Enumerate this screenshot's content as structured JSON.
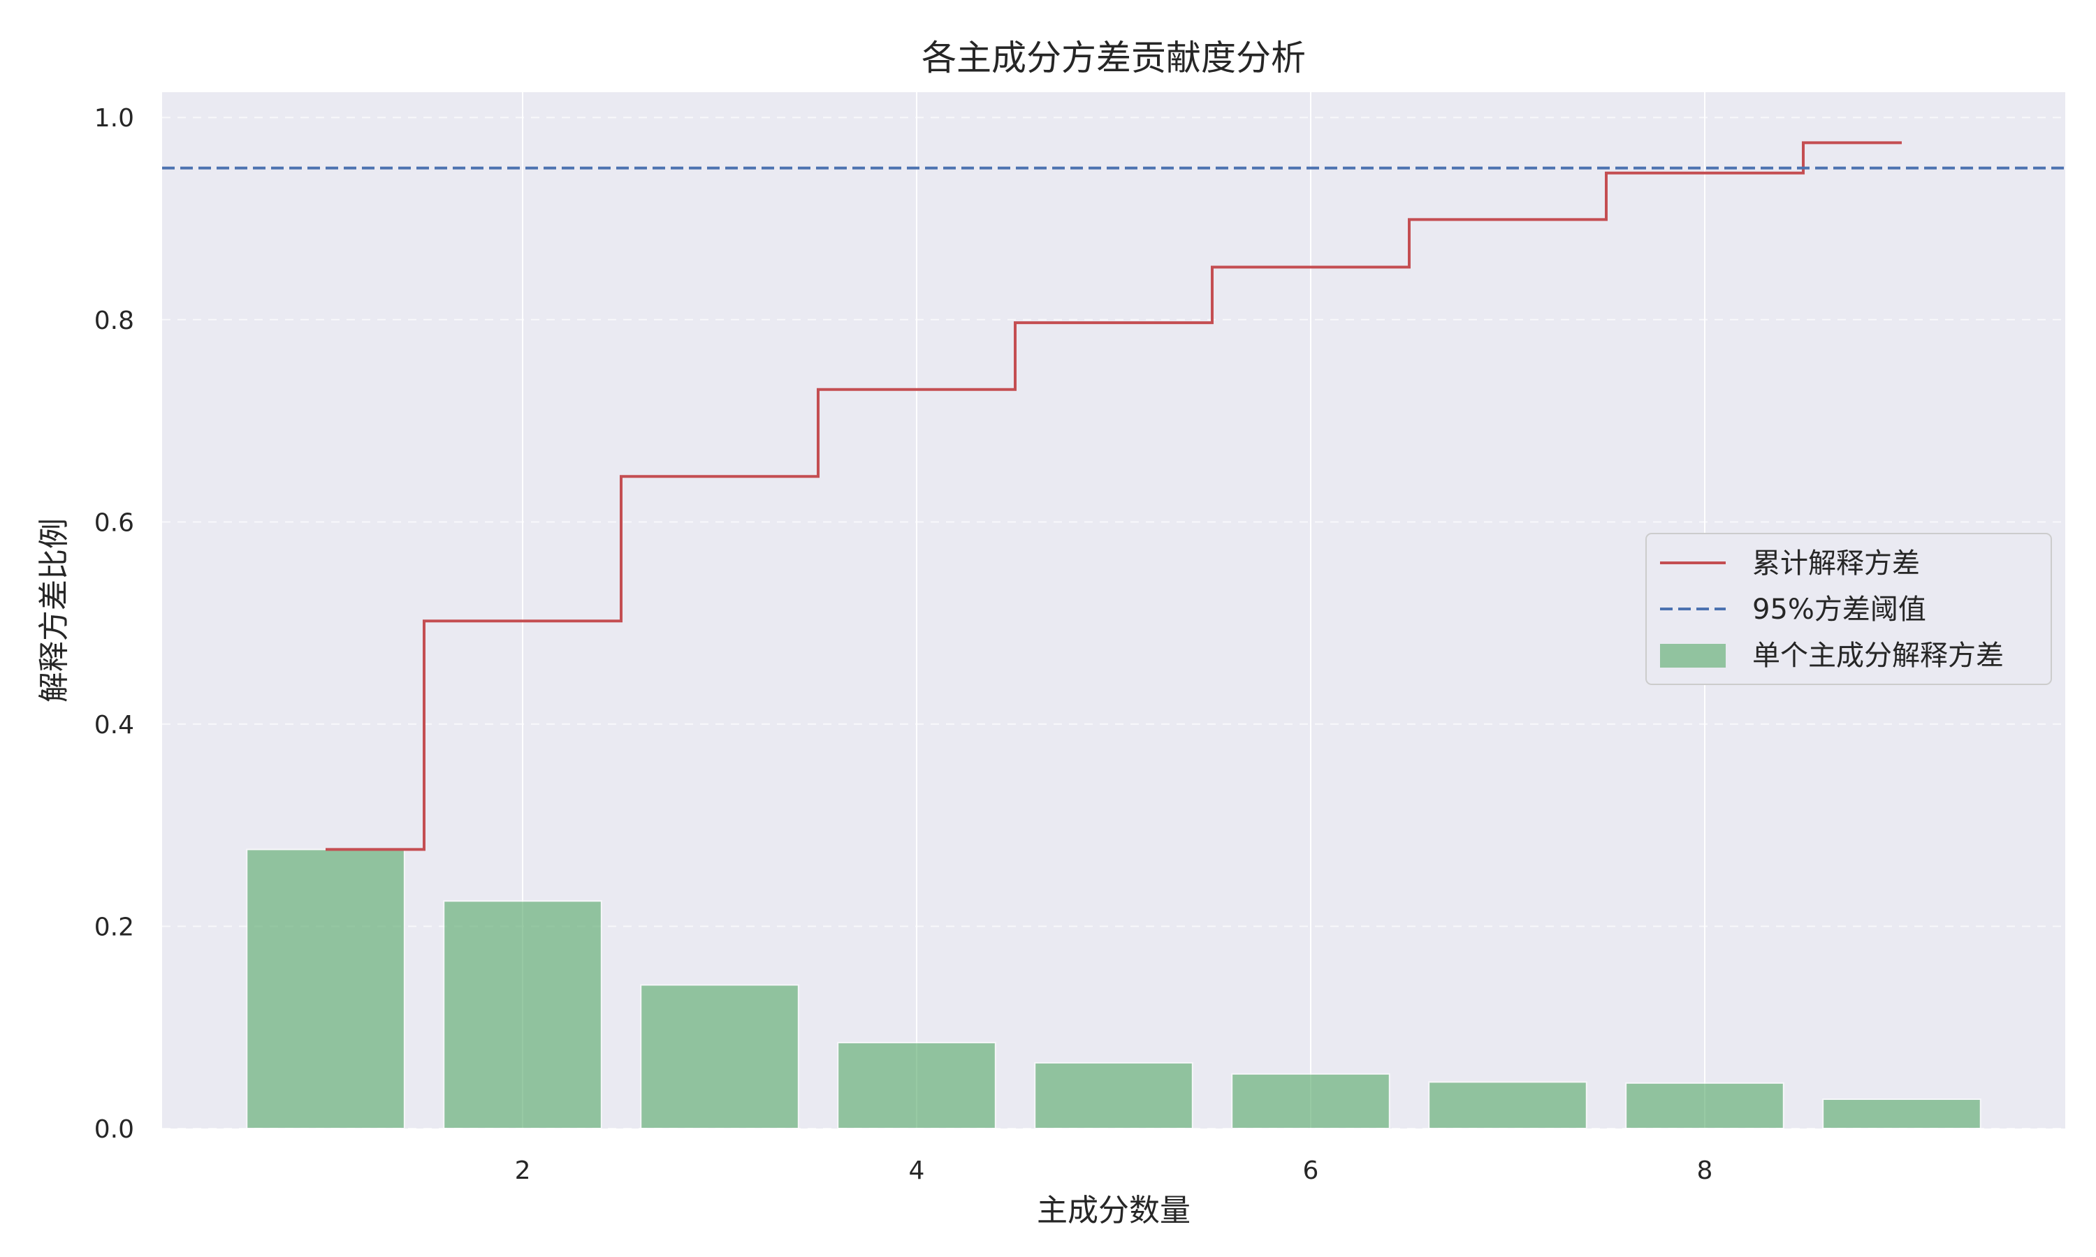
{
  "chart_data": {
    "type": "bar",
    "title": "各主成分方差贡献度分析",
    "xlabel": "主成分数量",
    "ylabel": "解释方差比例",
    "xlim": [
      0.17,
      9.83
    ],
    "ylim": [
      0,
      1.025
    ],
    "x_ticks": [
      2,
      4,
      6,
      8
    ],
    "y_ticks": [
      0.0,
      0.2,
      0.4,
      0.6,
      0.8,
      1.0
    ],
    "x_tick_labels": [
      "2",
      "4",
      "6",
      "8"
    ],
    "y_tick_labels": [
      "0.0",
      "0.2",
      "0.4",
      "0.6",
      "0.8",
      "1.0"
    ],
    "grid": true,
    "legend_position": "center-right",
    "series": [
      {
        "name": "单个主成分解释方差",
        "type": "bar",
        "color": "#55a868",
        "x": [
          1,
          2,
          3,
          4,
          5,
          6,
          7,
          8,
          9
        ],
        "values": [
          0.276,
          0.225,
          0.142,
          0.085,
          0.065,
          0.054,
          0.046,
          0.045,
          0.029
        ]
      },
      {
        "name": "累计解释方差",
        "type": "step",
        "color": "#c44e52",
        "x": [
          1,
          2,
          3,
          4,
          5,
          6,
          7,
          8,
          9
        ],
        "values": [
          0.276,
          0.502,
          0.645,
          0.731,
          0.797,
          0.852,
          0.899,
          0.945,
          0.975
        ]
      },
      {
        "name": "95%方差阈值",
        "type": "hline",
        "color": "#4c72b0",
        "value": 0.95
      }
    ],
    "colors": {
      "plot_background": "#eaeaf2",
      "grid": "#ffffff"
    }
  }
}
